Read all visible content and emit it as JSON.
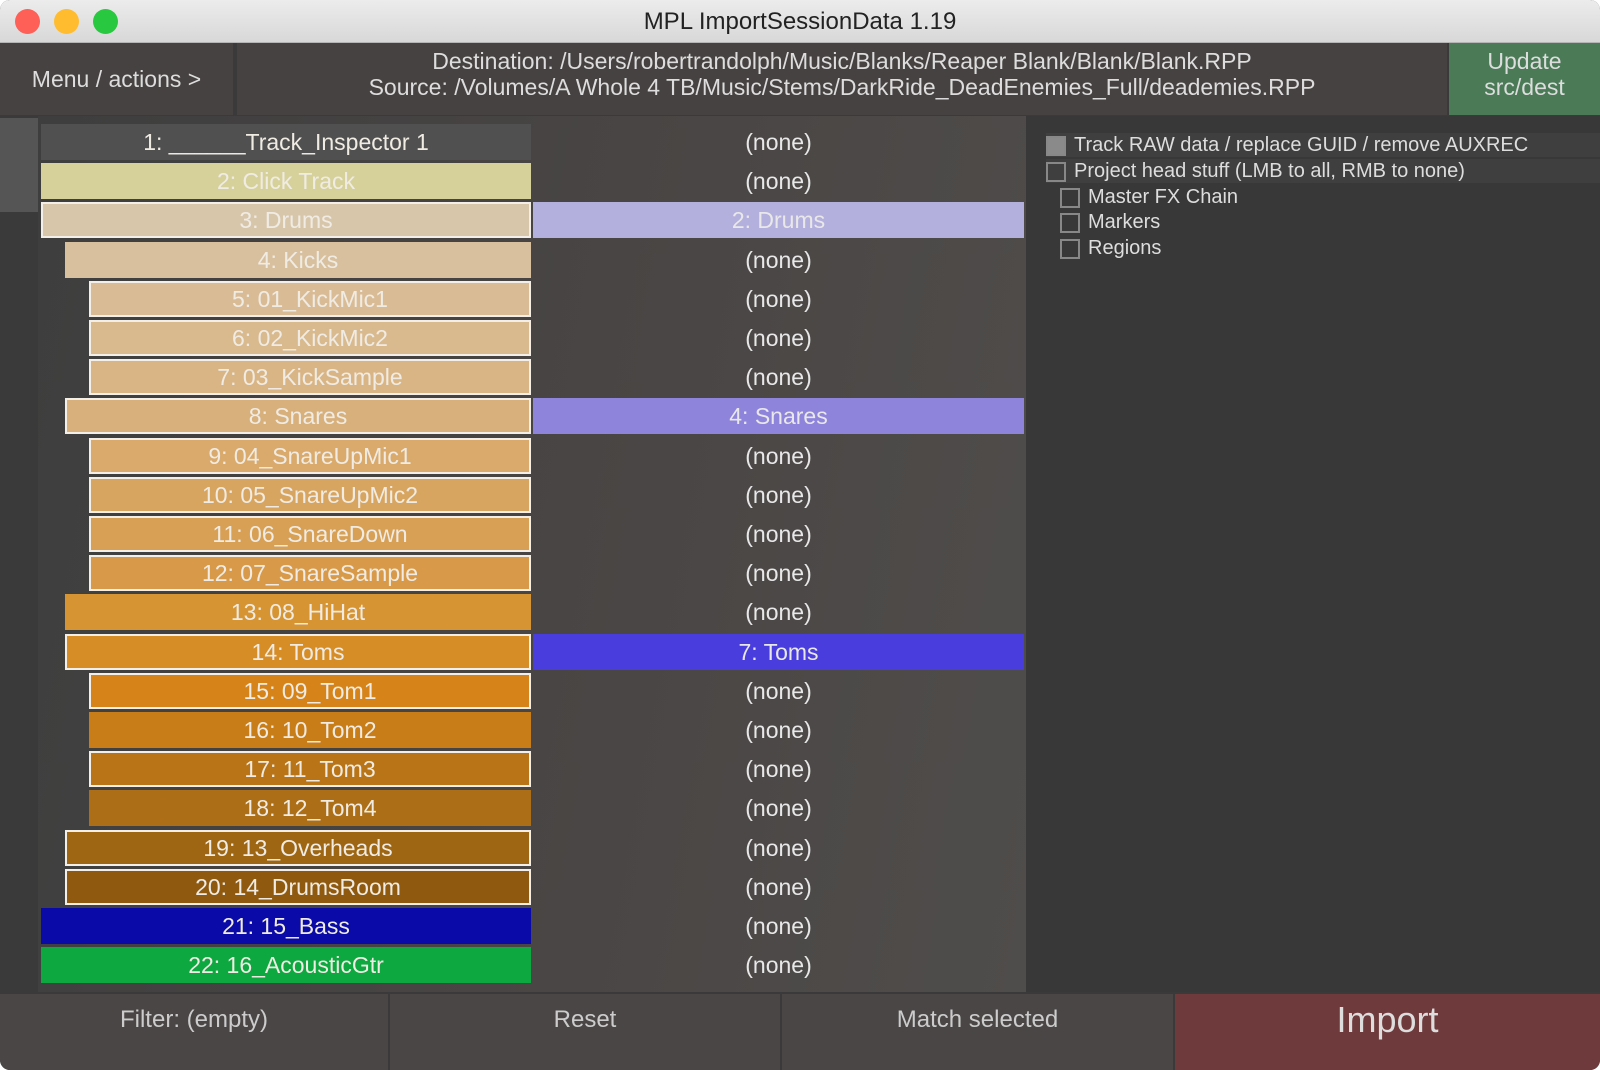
{
  "window": {
    "title": "MPL ImportSessionData 1.19"
  },
  "header": {
    "menu_label": "Menu / actions >",
    "destination": "Destination: /Users/robertrandolph/Music/Blanks/Reaper Blank/Blank/Blank.RPP",
    "source": "Source: /Volumes/A Whole 4 TB/Music/Stems/DarkRide_DeadEnemies_Full/deademies.RPP",
    "update_label": "Update\nsrc/dest",
    "update_line1": "Update",
    "update_line2": "src/dest"
  },
  "tracks": [
    {
      "label": "1: ______Track_Inspector 1",
      "color": "#505050",
      "level": 0,
      "selected": false,
      "dest": "(none)"
    },
    {
      "label": "2: Click Track",
      "color": "#d6d19a",
      "level": 0,
      "selected": false,
      "dest": "(none)"
    },
    {
      "label": "3: Drums",
      "color": "#d8c6ab",
      "level": 0,
      "selected": true,
      "dest": "2: Drums",
      "dest_color": "#b3b0dd"
    },
    {
      "label": "4: Kicks",
      "color": "#d8c09e",
      "level": 1,
      "selected": false,
      "dest": "(none)"
    },
    {
      "label": "5: 01_KickMic1",
      "color": "#d9bc96",
      "level": 2,
      "selected": true,
      "dest": "(none)"
    },
    {
      "label": "6: 02_KickMic2",
      "color": "#d9b98e",
      "level": 2,
      "selected": true,
      "dest": "(none)"
    },
    {
      "label": "7: 03_KickSample",
      "color": "#d9b585",
      "level": 2,
      "selected": true,
      "dest": "(none)"
    },
    {
      "label": "8: Snares",
      "color": "#d8b07c",
      "level": 1,
      "selected": true,
      "dest": "4: Snares",
      "dest_color": "#8e84dc"
    },
    {
      "label": "9: 04_SnareUpMic1",
      "color": "#d9aa6c",
      "level": 2,
      "selected": true,
      "dest": "(none)"
    },
    {
      "label": "10: 05_SnareUpMic2",
      "color": "#d8a560",
      "level": 2,
      "selected": true,
      "dest": "(none)"
    },
    {
      "label": "11: 06_SnareDown",
      "color": "#d8a055",
      "level": 2,
      "selected": true,
      "dest": "(none)"
    },
    {
      "label": "12: 07_SnareSample",
      "color": "#d89a48",
      "level": 2,
      "selected": true,
      "dest": "(none)"
    },
    {
      "label": "13: 08_HiHat",
      "color": "#d79433",
      "level": 1,
      "selected": false,
      "dest": "(none)"
    },
    {
      "label": "14: Toms",
      "color": "#d78d26",
      "level": 1,
      "selected": true,
      "dest": "7: Toms",
      "dest_color": "#4a3ddd"
    },
    {
      "label": "15: 09_Tom1",
      "color": "#d6841a",
      "level": 2,
      "selected": true,
      "dest": "(none)"
    },
    {
      "label": "16: 10_Tom2",
      "color": "#c97d18",
      "level": 2,
      "selected": false,
      "dest": "(none)"
    },
    {
      "label": "17: 11_Tom3",
      "color": "#b87416",
      "level": 2,
      "selected": true,
      "dest": "(none)"
    },
    {
      "label": "18: 12_Tom4",
      "color": "#ac6e16",
      "level": 2,
      "selected": false,
      "dest": "(none)"
    },
    {
      "label": "19: 13_Overheads",
      "color": "#9e6612",
      "level": 1,
      "selected": true,
      "dest": "(none)"
    },
    {
      "label": "20: 14_DrumsRoom",
      "color": "#8f5a10",
      "level": 1,
      "selected": true,
      "dest": "(none)"
    },
    {
      "label": "21: 15_Bass",
      "color": "#0a0aa8",
      "level": 0,
      "selected": false,
      "dest": "(none)"
    },
    {
      "label": "22: 16_AcousticGtr",
      "color": "#0ea840",
      "level": 0,
      "selected": false,
      "dest": "(none)"
    }
  ],
  "options": [
    {
      "label": "Track RAW data / replace GUID / remove AUXREC",
      "checked": true,
      "indent": 0
    },
    {
      "label": "Project head stuff (LMB to all, RMB to none)",
      "checked": false,
      "indent": 0
    },
    {
      "label": "Master FX Chain",
      "checked": false,
      "indent": 1
    },
    {
      "label": "Markers",
      "checked": false,
      "indent": 1
    },
    {
      "label": "Regions",
      "checked": false,
      "indent": 1
    }
  ],
  "footer": {
    "filter": "Filter: (empty)",
    "reset": "Reset",
    "match": "Match selected",
    "import": "Import",
    "import_color": "#6e3a3c"
  }
}
